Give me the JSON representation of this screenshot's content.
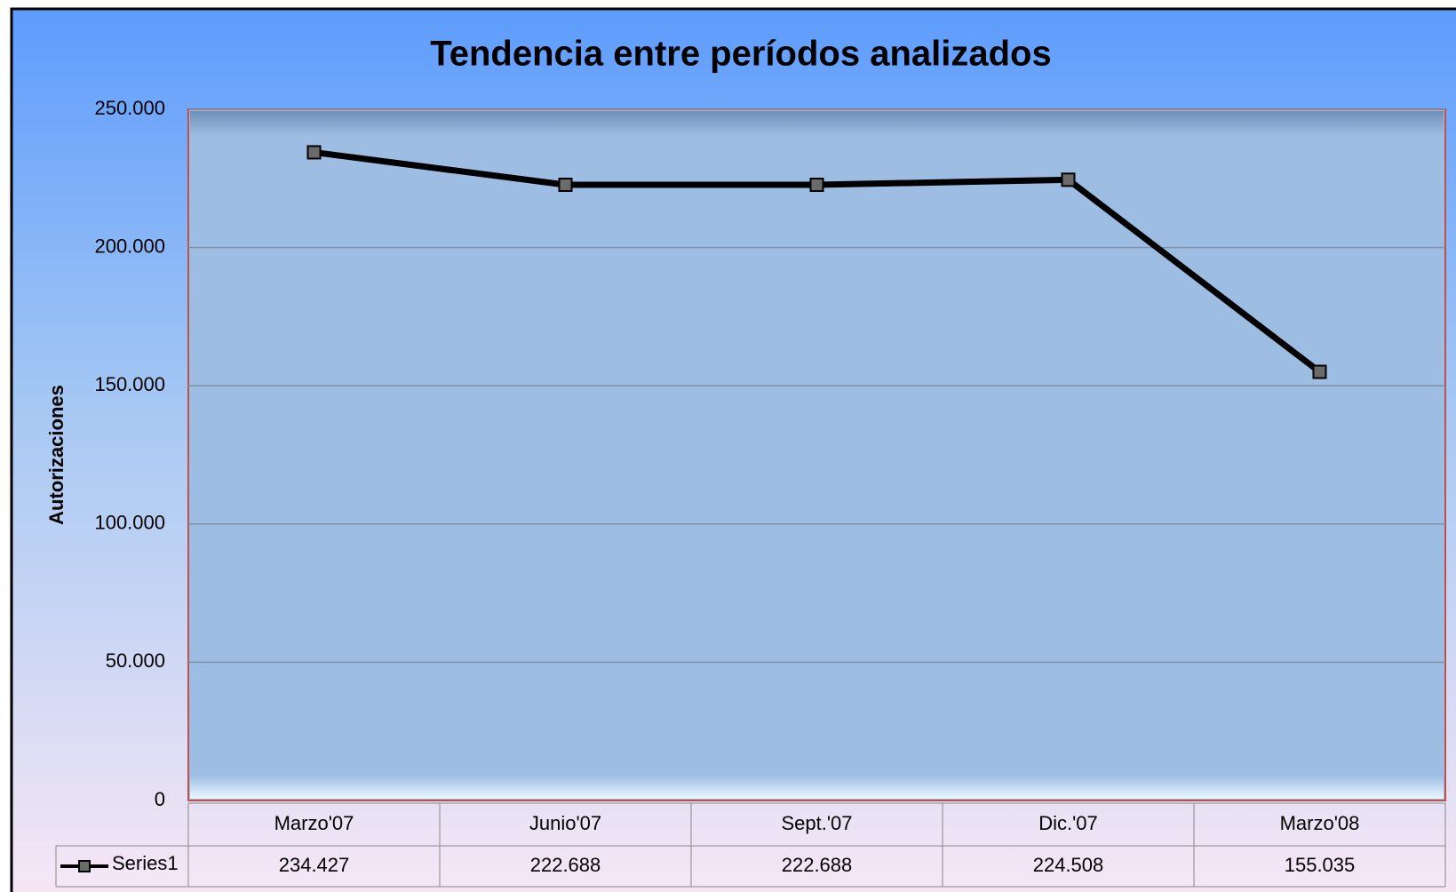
{
  "chart_data": {
    "type": "line",
    "title": "Tendencia entre períodos analizados",
    "y_label": "Autorizaciones",
    "categories": [
      "Marzo'07",
      "Junio'07",
      "Sept.'07",
      "Dic.'07",
      "Marzo'08"
    ],
    "series": [
      {
        "name": "Series1",
        "color": "#000000",
        "values": [
          234427,
          222688,
          222688,
          224508,
          155035
        ],
        "value_labels": [
          "234.427",
          "222.688",
          "222.688",
          "224.508",
          "155.035"
        ]
      }
    ],
    "ylim": [
      0,
      250000
    ],
    "yticks": [
      0,
      {
        "value": 50000,
        "label": "50.000"
      },
      {
        "value": 100000,
        "label": "100.000"
      },
      {
        "value": 150000,
        "label": "150.000"
      },
      {
        "value": 200000,
        "label": "200.000"
      },
      {
        "value": 250000,
        "label": "250.000"
      }
    ],
    "grid": true
  }
}
